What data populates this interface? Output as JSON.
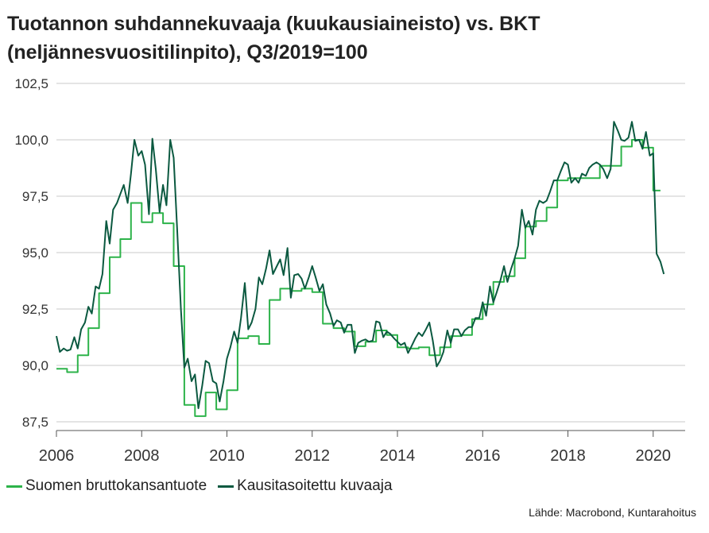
{
  "chart_data": {
    "type": "line",
    "title_lines": [
      "Tuotannon suhdannekuvaaja (kuukausiaineisto) vs. BKT",
      "(neljännesvuositilinpito), Q3/2019=100"
    ],
    "source": "Lähde: Macrobond, Kuntarahoitus",
    "ylim": [
      87.5,
      102.5
    ],
    "xlim": [
      2006.0,
      2020.75
    ],
    "y_ticks": [
      87.5,
      90.0,
      92.5,
      95.0,
      97.5,
      100.0,
      102.5
    ],
    "y_tick_labels": [
      "87,5",
      "90,0",
      "92,5",
      "95,0",
      "97,5",
      "100,0",
      "102,5"
    ],
    "x_ticks": [
      2006,
      2008,
      2010,
      2012,
      2014,
      2016,
      2018,
      2020
    ],
    "x_tick_labels": [
      "2006",
      "2008",
      "2010",
      "2012",
      "2014",
      "2016",
      "2018",
      "2020"
    ],
    "grid": "horizontal",
    "legend_position": "bottom-left",
    "series": [
      {
        "name": "Suomen bruttokansantuote",
        "color": "#2db34a",
        "step": true,
        "points": [
          [
            2006.0,
            89.85
          ],
          [
            2006.25,
            89.7
          ],
          [
            2006.5,
            90.45
          ],
          [
            2006.75,
            91.65
          ],
          [
            2007.0,
            93.2
          ],
          [
            2007.25,
            94.8
          ],
          [
            2007.5,
            95.6
          ],
          [
            2007.75,
            97.2
          ],
          [
            2008.0,
            96.35
          ],
          [
            2008.25,
            96.75
          ],
          [
            2008.5,
            96.3
          ],
          [
            2008.75,
            94.4
          ],
          [
            2009.0,
            88.25
          ],
          [
            2009.25,
            87.75
          ],
          [
            2009.5,
            88.8
          ],
          [
            2009.75,
            88.05
          ],
          [
            2010.0,
            88.9
          ],
          [
            2010.25,
            91.2
          ],
          [
            2010.5,
            91.3
          ],
          [
            2010.75,
            90.95
          ],
          [
            2011.0,
            92.9
          ],
          [
            2011.25,
            93.4
          ],
          [
            2011.5,
            93.3
          ],
          [
            2011.75,
            93.4
          ],
          [
            2012.0,
            93.25
          ],
          [
            2012.25,
            91.85
          ],
          [
            2012.5,
            91.65
          ],
          [
            2012.75,
            91.5
          ],
          [
            2013.0,
            90.85
          ],
          [
            2013.25,
            91.05
          ],
          [
            2013.5,
            91.55
          ],
          [
            2013.75,
            91.35
          ],
          [
            2014.0,
            90.8
          ],
          [
            2014.25,
            90.75
          ],
          [
            2014.5,
            90.8
          ],
          [
            2014.75,
            90.45
          ],
          [
            2015.0,
            90.8
          ],
          [
            2015.25,
            91.3
          ],
          [
            2015.5,
            91.35
          ],
          [
            2015.75,
            92.05
          ],
          [
            2016.0,
            92.7
          ],
          [
            2016.25,
            93.7
          ],
          [
            2016.5,
            93.95
          ],
          [
            2016.75,
            94.75
          ],
          [
            2017.0,
            96.15
          ],
          [
            2017.25,
            96.4
          ],
          [
            2017.5,
            97.0
          ],
          [
            2017.75,
            98.2
          ],
          [
            2018.0,
            98.3
          ],
          [
            2018.25,
            98.3
          ],
          [
            2018.5,
            98.3
          ],
          [
            2018.75,
            98.85
          ],
          [
            2019.0,
            98.85
          ],
          [
            2019.25,
            99.7
          ],
          [
            2019.5,
            100.0
          ],
          [
            2019.75,
            99.65
          ],
          [
            2020.0,
            97.75
          ],
          [
            2020.17,
            97.75
          ]
        ]
      },
      {
        "name": "Kausitasoitettu kuvaaja",
        "color": "#0b5940",
        "step": false,
        "points": [
          [
            2006.0,
            91.3
          ],
          [
            2006.08,
            90.6
          ],
          [
            2006.17,
            90.75
          ],
          [
            2006.25,
            90.65
          ],
          [
            2006.33,
            90.7
          ],
          [
            2006.42,
            91.25
          ],
          [
            2006.5,
            90.75
          ],
          [
            2006.58,
            91.6
          ],
          [
            2006.67,
            91.9
          ],
          [
            2006.75,
            92.6
          ],
          [
            2006.83,
            92.3
          ],
          [
            2006.92,
            93.5
          ],
          [
            2007.0,
            93.4
          ],
          [
            2007.08,
            94.05
          ],
          [
            2007.17,
            96.4
          ],
          [
            2007.25,
            95.4
          ],
          [
            2007.33,
            96.9
          ],
          [
            2007.42,
            97.2
          ],
          [
            2007.5,
            97.6
          ],
          [
            2007.58,
            98.0
          ],
          [
            2007.67,
            97.2
          ],
          [
            2007.75,
            98.5
          ],
          [
            2007.83,
            100.0
          ],
          [
            2007.92,
            99.3
          ],
          [
            2008.0,
            99.5
          ],
          [
            2008.08,
            98.9
          ],
          [
            2008.17,
            96.7
          ],
          [
            2008.25,
            100.05
          ],
          [
            2008.33,
            98.7
          ],
          [
            2008.42,
            96.8
          ],
          [
            2008.5,
            98.0
          ],
          [
            2008.58,
            97.1
          ],
          [
            2008.67,
            100.0
          ],
          [
            2008.75,
            99.2
          ],
          [
            2008.83,
            96.1
          ],
          [
            2008.92,
            92.5
          ],
          [
            2009.0,
            89.9
          ],
          [
            2009.08,
            90.3
          ],
          [
            2009.17,
            89.3
          ],
          [
            2009.25,
            89.6
          ],
          [
            2009.33,
            88.1
          ],
          [
            2009.42,
            89.1
          ],
          [
            2009.5,
            90.2
          ],
          [
            2009.58,
            90.1
          ],
          [
            2009.67,
            89.3
          ],
          [
            2009.75,
            89.2
          ],
          [
            2009.83,
            88.4
          ],
          [
            2009.92,
            89.3
          ],
          [
            2010.0,
            90.3
          ],
          [
            2010.08,
            90.8
          ],
          [
            2010.17,
            91.5
          ],
          [
            2010.25,
            91.0
          ],
          [
            2010.33,
            92.1
          ],
          [
            2010.42,
            93.65
          ],
          [
            2010.5,
            91.6
          ],
          [
            2010.58,
            91.9
          ],
          [
            2010.67,
            92.5
          ],
          [
            2010.75,
            93.9
          ],
          [
            2010.83,
            93.6
          ],
          [
            2010.92,
            94.3
          ],
          [
            2011.0,
            95.1
          ],
          [
            2011.08,
            94.05
          ],
          [
            2011.17,
            94.4
          ],
          [
            2011.25,
            94.7
          ],
          [
            2011.33,
            94.0
          ],
          [
            2011.42,
            95.2
          ],
          [
            2011.5,
            93.0
          ],
          [
            2011.58,
            94.0
          ],
          [
            2011.67,
            94.05
          ],
          [
            2011.75,
            93.85
          ],
          [
            2011.83,
            93.4
          ],
          [
            2011.92,
            93.9
          ],
          [
            2012.0,
            94.4
          ],
          [
            2012.08,
            93.9
          ],
          [
            2012.17,
            93.3
          ],
          [
            2012.25,
            93.6
          ],
          [
            2012.33,
            92.7
          ],
          [
            2012.42,
            92.3
          ],
          [
            2012.5,
            91.75
          ],
          [
            2012.58,
            92.0
          ],
          [
            2012.67,
            91.9
          ],
          [
            2012.75,
            91.45
          ],
          [
            2012.83,
            91.8
          ],
          [
            2012.92,
            91.8
          ],
          [
            2013.0,
            90.55
          ],
          [
            2013.08,
            91.0
          ],
          [
            2013.17,
            91.1
          ],
          [
            2013.25,
            91.15
          ],
          [
            2013.33,
            91.05
          ],
          [
            2013.42,
            91.1
          ],
          [
            2013.5,
            91.95
          ],
          [
            2013.58,
            91.9
          ],
          [
            2013.67,
            91.25
          ],
          [
            2013.75,
            91.5
          ],
          [
            2013.83,
            91.4
          ],
          [
            2013.92,
            91.2
          ],
          [
            2014.0,
            91.05
          ],
          [
            2014.08,
            90.9
          ],
          [
            2014.17,
            91.0
          ],
          [
            2014.25,
            90.55
          ],
          [
            2014.33,
            90.85
          ],
          [
            2014.42,
            91.2
          ],
          [
            2014.5,
            91.45
          ],
          [
            2014.58,
            91.3
          ],
          [
            2014.67,
            91.6
          ],
          [
            2014.75,
            91.9
          ],
          [
            2014.83,
            91.1
          ],
          [
            2014.92,
            89.95
          ],
          [
            2015.0,
            90.2
          ],
          [
            2015.08,
            90.6
          ],
          [
            2015.17,
            91.55
          ],
          [
            2015.25,
            91.0
          ],
          [
            2015.33,
            91.6
          ],
          [
            2015.42,
            91.6
          ],
          [
            2015.5,
            91.3
          ],
          [
            2015.58,
            91.55
          ],
          [
            2015.67,
            91.7
          ],
          [
            2015.75,
            91.7
          ],
          [
            2015.83,
            92.1
          ],
          [
            2015.92,
            92.1
          ],
          [
            2016.0,
            92.8
          ],
          [
            2016.08,
            92.2
          ],
          [
            2016.17,
            93.5
          ],
          [
            2016.25,
            92.8
          ],
          [
            2016.33,
            93.25
          ],
          [
            2016.42,
            93.8
          ],
          [
            2016.5,
            94.4
          ],
          [
            2016.58,
            93.7
          ],
          [
            2016.67,
            94.3
          ],
          [
            2016.75,
            94.75
          ],
          [
            2016.83,
            95.3
          ],
          [
            2016.92,
            96.9
          ],
          [
            2017.0,
            96.1
          ],
          [
            2017.08,
            96.4
          ],
          [
            2017.17,
            95.8
          ],
          [
            2017.25,
            96.9
          ],
          [
            2017.33,
            97.3
          ],
          [
            2017.42,
            97.2
          ],
          [
            2017.5,
            97.3
          ],
          [
            2017.58,
            97.7
          ],
          [
            2017.67,
            98.2
          ],
          [
            2017.75,
            98.2
          ],
          [
            2017.83,
            98.6
          ],
          [
            2017.92,
            99.0
          ],
          [
            2018.0,
            98.9
          ],
          [
            2018.08,
            98.1
          ],
          [
            2018.17,
            98.3
          ],
          [
            2018.25,
            98.1
          ],
          [
            2018.33,
            98.5
          ],
          [
            2018.42,
            98.4
          ],
          [
            2018.5,
            98.75
          ],
          [
            2018.58,
            98.9
          ],
          [
            2018.67,
            99.0
          ],
          [
            2018.75,
            98.9
          ],
          [
            2018.83,
            98.7
          ],
          [
            2018.92,
            98.3
          ],
          [
            2019.0,
            98.7
          ],
          [
            2019.08,
            100.8
          ],
          [
            2019.17,
            100.4
          ],
          [
            2019.25,
            100.0
          ],
          [
            2019.33,
            99.95
          ],
          [
            2019.42,
            100.1
          ],
          [
            2019.5,
            100.8
          ],
          [
            2019.58,
            99.95
          ],
          [
            2019.67,
            100.0
          ],
          [
            2019.75,
            99.6
          ],
          [
            2019.83,
            100.35
          ],
          [
            2019.92,
            99.3
          ],
          [
            2020.0,
            99.4
          ],
          [
            2020.08,
            94.95
          ],
          [
            2020.17,
            94.6
          ],
          [
            2020.25,
            94.05
          ]
        ]
      }
    ]
  }
}
